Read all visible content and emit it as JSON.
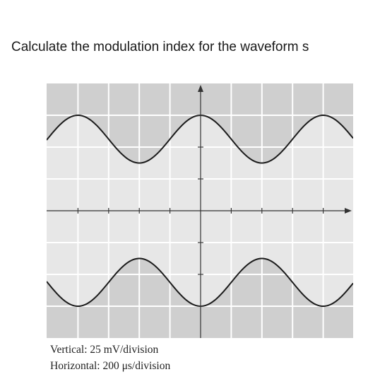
{
  "question": {
    "text": "Calculate the modulation index for the waveform s"
  },
  "scope": {
    "divisions_x": 10,
    "divisions_y": 8,
    "envelope": {
      "max_divisions": 3.0,
      "min_divisions": 1.5,
      "cycles_across_screen": 2.5,
      "phase": "max at center"
    },
    "colors": {
      "screen_fill": "#cfcfcf",
      "signal_fill": "#e7e7e7",
      "grid": "#ffffff",
      "trace": "#1b1b1b",
      "axes": "#333333"
    }
  },
  "caption": {
    "vertical": "Vertical: 25 mV/division",
    "horizontal": "Horizontal: 200 μs/division"
  }
}
